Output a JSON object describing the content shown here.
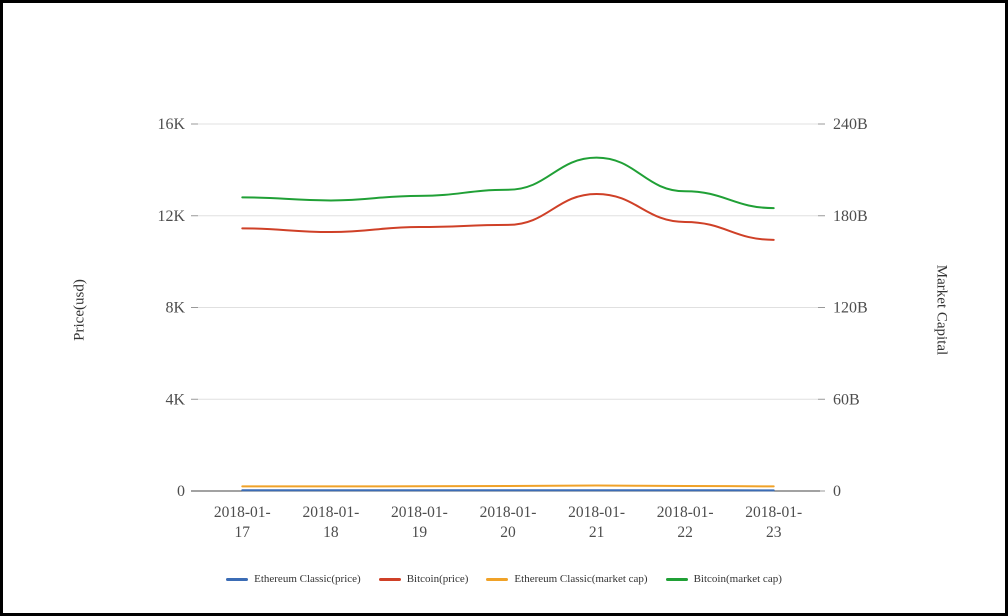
{
  "figure": {
    "background_color": "#ffffff",
    "frame_color": "#000000",
    "gridline_color": "#e0e0e0",
    "axis_line_color": "#444444",
    "tick_color": "#999999",
    "tick_label_color": "#4d4d4d"
  },
  "chart_data": {
    "type": "line",
    "smooth": true,
    "grid": true,
    "legend_position": "bottom",
    "title": "",
    "xlabel": "",
    "categories": [
      "2018-01-17",
      "2018-01-18",
      "2018-01-19",
      "2018-01-20",
      "2018-01-21",
      "2018-01-22",
      "2018-01-23"
    ],
    "left_axis": {
      "title": "Price(usd)",
      "ticks": [
        "0",
        "4K",
        "8K",
        "12K",
        "16K"
      ],
      "tick_values": [
        0,
        4000,
        8000,
        12000,
        16000
      ],
      "min": 0,
      "max": 16000,
      "unit": "USD"
    },
    "right_axis": {
      "title": "Market Capital",
      "ticks": [
        "0",
        "60B",
        "120B",
        "180B",
        "240B"
      ],
      "tick_values": [
        0,
        60,
        120,
        180,
        240
      ],
      "min": 0,
      "max": 240,
      "unit": "billions USD"
    },
    "series": [
      {
        "name": "Ethereum Classic(price)",
        "axis": "left",
        "color": "#3b6cb5",
        "values": [
          31,
          30,
          31,
          32,
          33,
          31,
          29
        ]
      },
      {
        "name": "Bitcoin(price)",
        "axis": "left",
        "color": "#cf4027",
        "values": [
          11450,
          11290,
          11510,
          11600,
          12950,
          11730,
          10950
        ]
      },
      {
        "name": "Ethereum Classic(market cap)",
        "axis": "right",
        "color": "#f0a228",
        "values": [
          3.0,
          3.0,
          3.1,
          3.3,
          3.6,
          3.3,
          3.0
        ]
      },
      {
        "name": "Bitcoin(market cap)",
        "axis": "right",
        "color": "#20a036",
        "values": [
          192,
          190,
          193,
          197,
          218,
          196,
          185
        ]
      }
    ]
  }
}
